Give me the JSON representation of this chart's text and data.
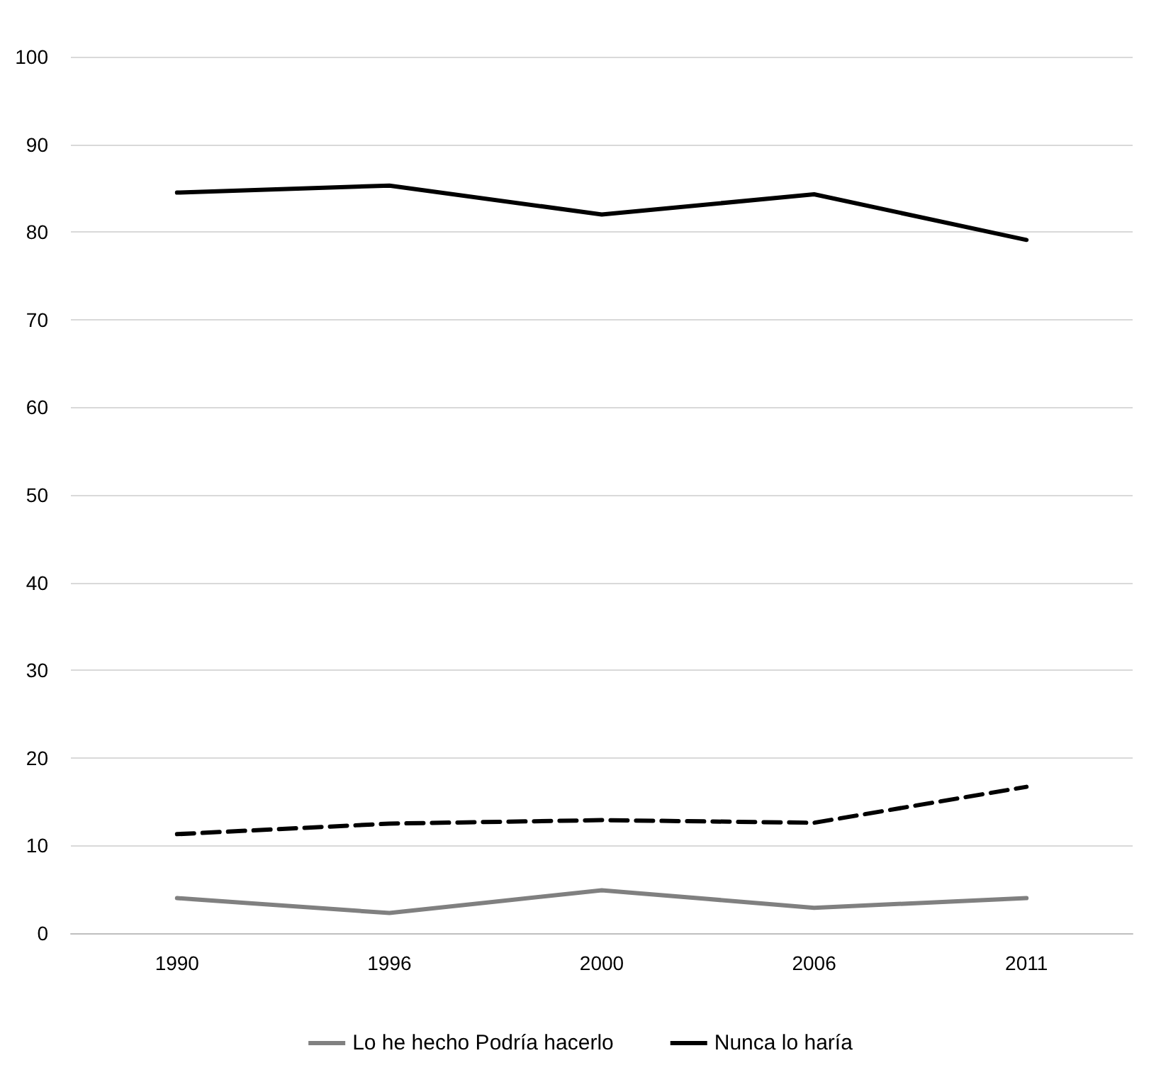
{
  "chart_data": {
    "type": "line",
    "categories": [
      "1990",
      "1996",
      "2000",
      "2006",
      "2011"
    ],
    "series": [
      {
        "name": "Lo he hecho Podría hacerlo",
        "color": "#808080",
        "values": [
          4.0,
          2.3,
          4.9,
          2.9,
          4.0
        ]
      },
      {
        "color": "#000000",
        "line_style": "dashed",
        "values": [
          11.3,
          12.5,
          12.9,
          12.6,
          16.7
        ]
      },
      {
        "name": "Nunca lo haría",
        "color": "#000000",
        "values": [
          84.5,
          85.3,
          82.0,
          84.3,
          79.1
        ]
      }
    ],
    "ylim": [
      0,
      100
    ],
    "yticks": [
      0,
      10,
      20,
      30,
      40,
      50,
      60,
      70,
      80,
      90,
      100
    ],
    "grid": "y",
    "legend": "bottom",
    "marker": "none",
    "line_style": "solid"
  }
}
